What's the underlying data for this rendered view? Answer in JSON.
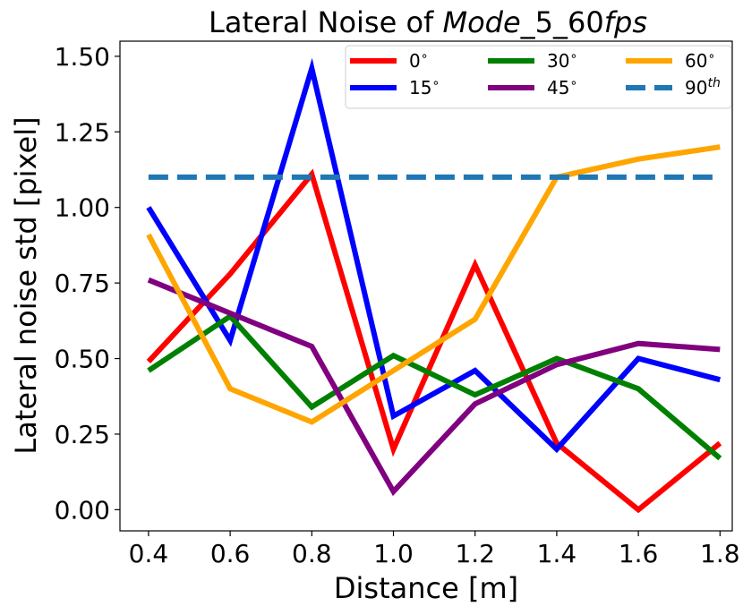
{
  "chart_data": {
    "type": "line",
    "title_prefix": "Lateral Noise of ",
    "title_italic": "Mode",
    "title_mid": "_5_60",
    "title_italic2": "fps",
    "xlabel": "Distance [m]",
    "ylabel": "Lateral noise std [pixel]",
    "x": [
      0.4,
      0.6,
      0.8,
      1.0,
      1.2,
      1.4,
      1.6,
      1.8
    ],
    "x_ticks": [
      "0.4",
      "0.6",
      "0.8",
      "1.0",
      "1.2",
      "1.4",
      "1.6",
      "1.8"
    ],
    "y_ticks": [
      "0.00",
      "0.25",
      "0.50",
      "0.75",
      "1.00",
      "1.25",
      "1.50"
    ],
    "xlim": [
      0.33,
      1.83
    ],
    "ylim": [
      -0.07,
      1.55
    ],
    "legend_position": "top-right",
    "series": [
      {
        "name": "0°",
        "legend_base": "0",
        "legend_sup": "∘",
        "color": "#ff0000",
        "dashed": false,
        "values": [
          0.49,
          0.78,
          1.11,
          0.2,
          0.81,
          0.22,
          0.0,
          0.22
        ]
      },
      {
        "name": "15°",
        "legend_base": "15",
        "legend_sup": "∘",
        "color": "#0000ff",
        "dashed": false,
        "values": [
          1.0,
          0.56,
          1.46,
          0.31,
          0.46,
          0.2,
          0.5,
          0.43
        ]
      },
      {
        "name": "30°",
        "legend_base": "30",
        "legend_sup": "∘",
        "color": "#008000",
        "dashed": false,
        "values": [
          0.46,
          0.64,
          0.34,
          0.51,
          0.38,
          0.5,
          0.4,
          0.17
        ]
      },
      {
        "name": "45°",
        "legend_base": "45",
        "legend_sup": "∘",
        "color": "#800080",
        "dashed": false,
        "values": [
          0.76,
          0.65,
          0.54,
          0.06,
          0.35,
          0.48,
          0.55,
          0.53
        ]
      },
      {
        "name": "60°",
        "legend_base": "60",
        "legend_sup": "∘",
        "color": "#ffa500",
        "dashed": false,
        "values": [
          0.91,
          0.4,
          0.29,
          0.46,
          0.63,
          1.1,
          1.16,
          1.2
        ]
      },
      {
        "name": "90th",
        "legend_base": "90",
        "legend_sup": "th",
        "color": "#1f77b4",
        "dashed": true,
        "values": [
          1.1,
          1.1,
          1.1,
          1.1,
          1.1,
          1.1,
          1.1,
          1.1
        ]
      }
    ]
  }
}
